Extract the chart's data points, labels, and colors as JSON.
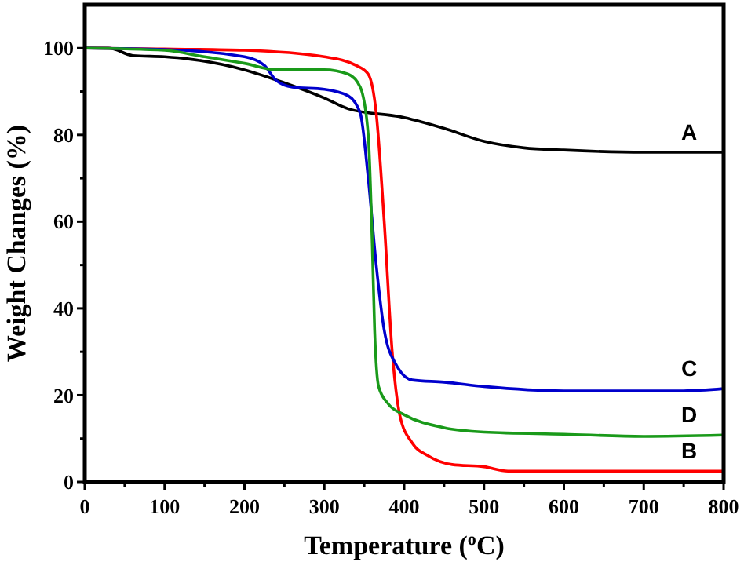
{
  "chart_data": {
    "type": "line",
    "xlabel": "Temperature ($^{o}$C)",
    "ylabel": "Weight Changes (%)",
    "xlim": [
      0,
      800
    ],
    "ylim": [
      0,
      110
    ],
    "xticks": [
      0,
      {
        "value": 50,
        "label": null
      },
      100,
      {
        "value": 150,
        "label": null
      },
      200,
      {
        "value": 250,
        "label": null
      },
      300,
      {
        "value": 350,
        "label": null
      },
      400,
      {
        "value": 450,
        "label": null
      },
      500,
      {
        "value": 550,
        "label": null
      },
      600,
      {
        "value": 650,
        "label": null
      },
      700,
      {
        "value": 750,
        "label": null
      },
      800
    ],
    "yticks": [
      0,
      {
        "value": 10,
        "label": null
      },
      20,
      {
        "value": 30,
        "label": null
      },
      40,
      {
        "value": 50,
        "label": null
      },
      60,
      {
        "value": 70,
        "label": null
      },
      80,
      {
        "value": 90,
        "label": null
      },
      100
    ],
    "grid": false,
    "marker": "none",
    "line_style": "solid",
    "series": [
      {
        "name": "A",
        "color": "#000000",
        "x": [
          0,
          30,
          60,
          100,
          130,
          200,
          250,
          300,
          330,
          400,
          450,
          500,
          550,
          600,
          700,
          800
        ],
        "values": [
          100,
          100,
          98.3,
          98,
          97.5,
          95,
          92,
          88.5,
          86,
          84,
          81.5,
          78.5,
          77,
          76.5,
          76,
          76
        ]
      },
      {
        "name": "B",
        "color": "#ff0000",
        "x": [
          0,
          100,
          200,
          300,
          340,
          355,
          365,
          375,
          385,
          395,
          410,
          430,
          460,
          500,
          530,
          600,
          700,
          800
        ],
        "values": [
          100,
          99.8,
          99.5,
          98,
          96,
          94,
          85,
          60,
          30,
          15,
          9,
          6,
          4,
          3.5,
          2.5,
          2.5,
          2.5,
          2.5
        ]
      },
      {
        "name": "C",
        "color": "#0000cc",
        "x": [
          0,
          100,
          200,
          225,
          240,
          260,
          300,
          330,
          345,
          355,
          365,
          375,
          390,
          410,
          450,
          500,
          600,
          700,
          750,
          800
        ],
        "values": [
          100,
          99.7,
          98,
          96,
          92.5,
          91,
          90.5,
          89,
          85,
          70,
          50,
          35,
          27,
          23.5,
          23,
          22,
          21,
          21,
          21,
          21.5
        ]
      },
      {
        "name": "D",
        "color": "#1a9a1a",
        "x": [
          0,
          100,
          150,
          200,
          240,
          300,
          330,
          345,
          355,
          360,
          363,
          368,
          380,
          400,
          450,
          500,
          600,
          700,
          800
        ],
        "values": [
          100,
          99.5,
          98,
          96.5,
          95,
          95,
          94,
          91,
          80,
          55,
          35,
          22,
          18,
          15.5,
          12.5,
          11.5,
          11,
          10.5,
          10.8
        ]
      }
    ]
  }
}
